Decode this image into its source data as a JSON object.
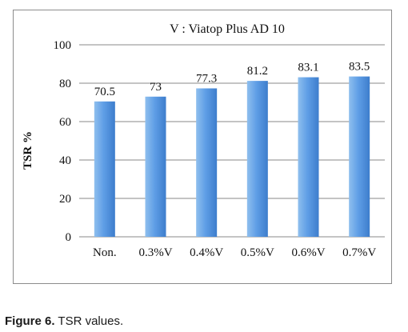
{
  "chart_data": {
    "type": "bar",
    "title": "V : Viatop Plus AD 10",
    "ylabel": "TSR %",
    "xlabel": "",
    "categories": [
      "Non.",
      "0.3%V",
      "0.4%V",
      "0.5%V",
      "0.6%V",
      "0.7%V"
    ],
    "values": [
      70.5,
      73,
      77.3,
      81.2,
      83.1,
      83.5
    ],
    "value_labels": [
      "70.5",
      "73",
      "77.3",
      "81.2",
      "83.1",
      "83.5"
    ],
    "ylim": [
      0,
      100
    ],
    "yticks": [
      "0",
      "20",
      "40",
      "60",
      "80",
      "100"
    ],
    "grid": true,
    "legend": "none",
    "bar_color_light": "#8fbfee",
    "bar_color_dark": "#3d7dcc"
  },
  "caption": {
    "label": "Figure 6.",
    "text": " TSR values."
  }
}
